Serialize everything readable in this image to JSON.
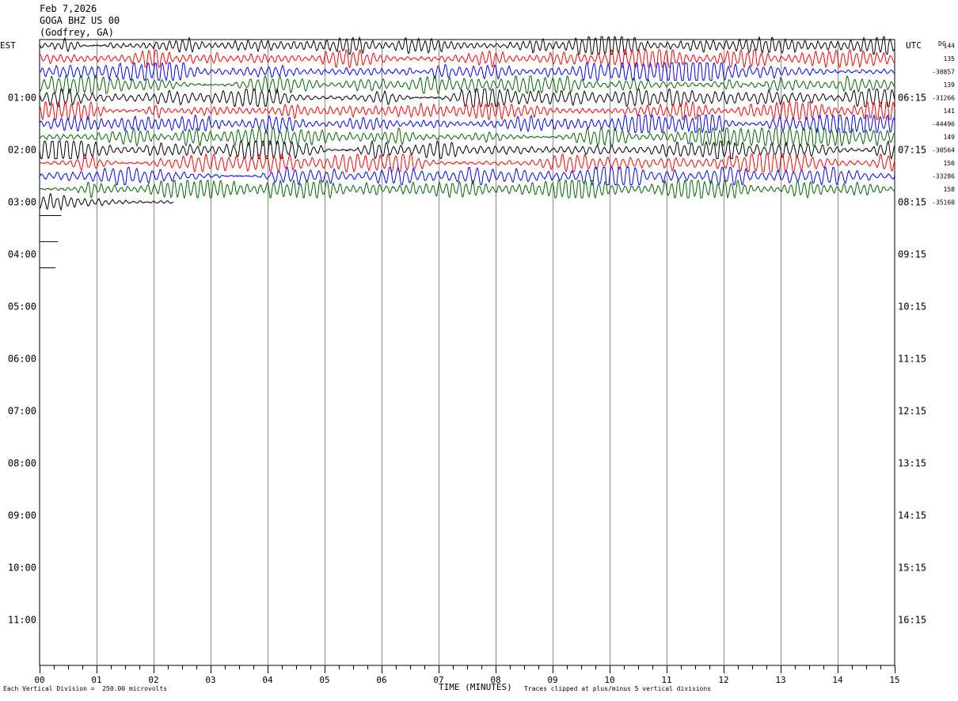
{
  "header": {
    "date": "Feb 7,2026",
    "station": "GOGA BHZ US 00",
    "location": "(Godfrey, GA)"
  },
  "footer": {
    "scale_note": "Each Vertical Division =  250.00 microvolts",
    "clip_note": "Traces clipped at plus/minus 5 vertical divisions"
  },
  "chart_data": {
    "type": "line",
    "title": "",
    "xlabel": "TIME (MINUTES)",
    "ylabel_left": "EST",
    "ylabel_right": "UTC",
    "dc_label": "DC",
    "xlim": [
      0,
      15
    ],
    "x_ticks": [
      "00",
      "01",
      "02",
      "03",
      "04",
      "05",
      "06",
      "07",
      "08",
      "09",
      "10",
      "11",
      "12",
      "13",
      "14",
      "15"
    ],
    "rows_per_hour": 4,
    "est_labels": [
      "01:00",
      "02:00",
      "03:00",
      "04:00",
      "05:00",
      "06:00",
      "07:00",
      "08:00",
      "09:00",
      "10:00",
      "11:00"
    ],
    "utc_labels": [
      "06:15",
      "07:15",
      "08:15",
      "09:15",
      "10:15",
      "11:15",
      "12:15",
      "13:15",
      "14:15",
      "15:15",
      "16:15"
    ],
    "trace_colors": [
      "#000000",
      "#ff0000",
      "#0000ff",
      "#006600"
    ],
    "grid": true,
    "traces": [
      {
        "row": 0,
        "color": "#000000",
        "dc": "144",
        "end_minute": 15
      },
      {
        "row": 1,
        "color": "#ff0000",
        "dc": "135",
        "end_minute": 15
      },
      {
        "row": 2,
        "color": "#0000ff",
        "dc": "-30857",
        "end_minute": 15
      },
      {
        "row": 3,
        "color": "#006600",
        "dc": "139",
        "end_minute": 15
      },
      {
        "row": 4,
        "color": "#000000",
        "dc": "-31266",
        "end_minute": 15
      },
      {
        "row": 5,
        "color": "#ff0000",
        "dc": "141",
        "end_minute": 15
      },
      {
        "row": 6,
        "color": "#0000ff",
        "dc": "-44496",
        "end_minute": 15
      },
      {
        "row": 7,
        "color": "#006600",
        "dc": "149",
        "end_minute": 15
      },
      {
        "row": 8,
        "color": "#000000",
        "dc": "-30564",
        "end_minute": 15
      },
      {
        "row": 9,
        "color": "#ff0000",
        "dc": "156",
        "end_minute": 15
      },
      {
        "row": 10,
        "color": "#0000ff",
        "dc": "-33286",
        "end_minute": 15
      },
      {
        "row": 11,
        "color": "#006600",
        "dc": "158",
        "end_minute": 15
      },
      {
        "row": 12,
        "color": "#000000",
        "dc": "-35160",
        "end_minute": 2.35
      }
    ],
    "stubs": [
      {
        "row": 13,
        "color": "#000000",
        "end_minute": 0.38
      },
      {
        "row": 15,
        "color": "#0000ff",
        "end_minute": 0.32
      },
      {
        "row": 17,
        "color": "#000000",
        "end_minute": 0.28
      }
    ]
  }
}
